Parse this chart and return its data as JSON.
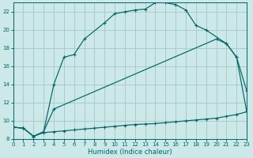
{
  "xlabel": "Humidex (Indice chaleur)",
  "bg_color": "#cce8e8",
  "grid_color": "#aacccc",
  "line_color": "#006666",
  "xlim": [
    0,
    23
  ],
  "ylim": [
    8,
    23
  ],
  "xticks": [
    0,
    1,
    2,
    3,
    4,
    5,
    6,
    7,
    8,
    9,
    10,
    11,
    12,
    13,
    14,
    15,
    16,
    17,
    18,
    19,
    20,
    21,
    22,
    23
  ],
  "yticks": [
    8,
    10,
    12,
    14,
    16,
    18,
    20,
    22
  ],
  "line1_x": [
    0,
    1,
    2,
    3,
    4,
    5,
    6,
    7,
    9,
    10,
    11,
    12,
    13,
    14,
    15,
    16,
    17,
    18,
    19,
    21,
    22,
    23
  ],
  "line1_y": [
    9.3,
    9.2,
    8.3,
    8.8,
    14.0,
    17.0,
    17.3,
    19.0,
    20.8,
    21.8,
    22.0,
    22.2,
    22.3,
    23.0,
    23.0,
    22.8,
    22.2,
    20.5,
    20.0,
    18.5,
    17.0,
    13.3
  ],
  "line2_x": [
    0,
    1,
    2,
    3,
    4,
    20,
    21,
    22,
    23
  ],
  "line2_y": [
    9.3,
    9.2,
    8.3,
    8.8,
    11.3,
    19.0,
    18.5,
    17.0,
    11.0
  ],
  "line3_x": [
    0,
    1,
    2,
    3,
    4,
    5,
    6,
    7,
    8,
    9,
    10,
    11,
    12,
    13,
    14,
    15,
    16,
    17,
    18,
    19,
    20,
    21,
    22,
    23
  ],
  "line3_y": [
    9.3,
    9.2,
    8.3,
    8.7,
    8.8,
    8.9,
    9.0,
    9.1,
    9.2,
    9.3,
    9.4,
    9.5,
    9.6,
    9.65,
    9.7,
    9.8,
    9.9,
    10.0,
    10.1,
    10.2,
    10.3,
    10.5,
    10.7,
    11.0
  ]
}
